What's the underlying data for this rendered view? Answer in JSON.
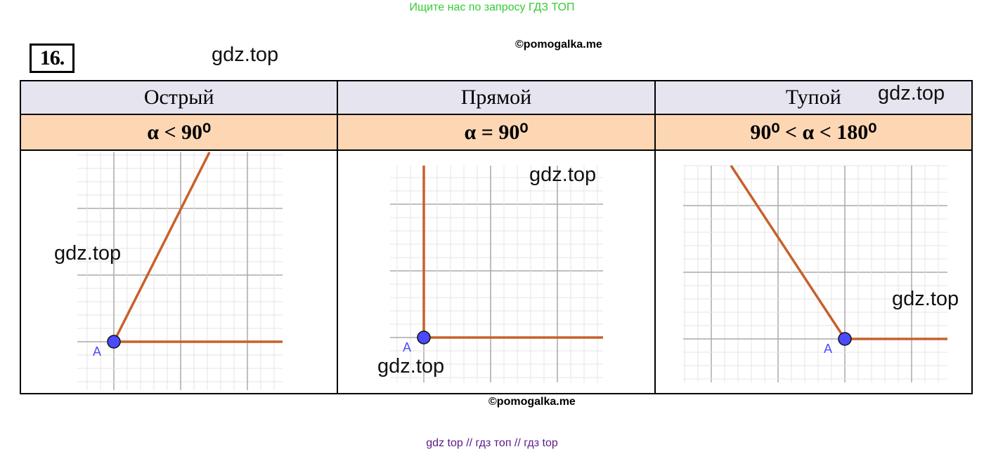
{
  "banner": "Ищите нас по запросу ГДЗ ТОП",
  "task_number": "16.",
  "watermarks": [
    "gdz.top",
    "gdz.top",
    "gdz.top",
    "gdz.top",
    "gdz.top",
    "gdz.top"
  ],
  "copyright": "©pomogalka.me",
  "columns": [
    {
      "title": "Острый",
      "formula": "α < 90⁰",
      "point_label": "A"
    },
    {
      "title": "Прямой",
      "formula": "α = 90⁰",
      "point_label": "A"
    },
    {
      "title": "Тупой",
      "formula": "90⁰ < α < 180⁰",
      "point_label": "A"
    }
  ],
  "colors": {
    "ray": "#c8602c",
    "point": "#4a4aff",
    "grid": "#bbbbbb"
  },
  "footer": "gdz top  //  гдз топ  //  гдз top"
}
